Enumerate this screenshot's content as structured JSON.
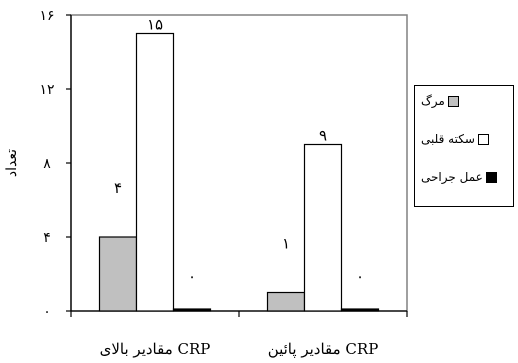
{
  "chart_data": {
    "type": "bar",
    "ylabel": "تعداد",
    "ylim": [
      0,
      16
    ],
    "yticks": [
      0,
      4,
      8,
      12,
      16
    ],
    "ytick_labels": [
      "۰",
      "۴",
      "۸",
      "۱۲",
      "۱۶"
    ],
    "categories": [
      "مقادیر بالای CRP",
      "مقادیر پائین CRP"
    ],
    "series": [
      {
        "name": "مرگ",
        "values": [
          4,
          1
        ],
        "value_labels": [
          "۴",
          "۱"
        ],
        "color": "#c0c0c0"
      },
      {
        "name": "سکته قلبی",
        "values": [
          15,
          9
        ],
        "value_labels": [
          "۱۵",
          "۹"
        ],
        "color": "#ffffff"
      },
      {
        "name": "عمل جراحی",
        "values": [
          0,
          0
        ],
        "value_labels": [
          "۰",
          "۰"
        ],
        "color": "#000000"
      }
    ],
    "legend_position": "right",
    "plot_background": "#ffffff",
    "grid": false
  }
}
